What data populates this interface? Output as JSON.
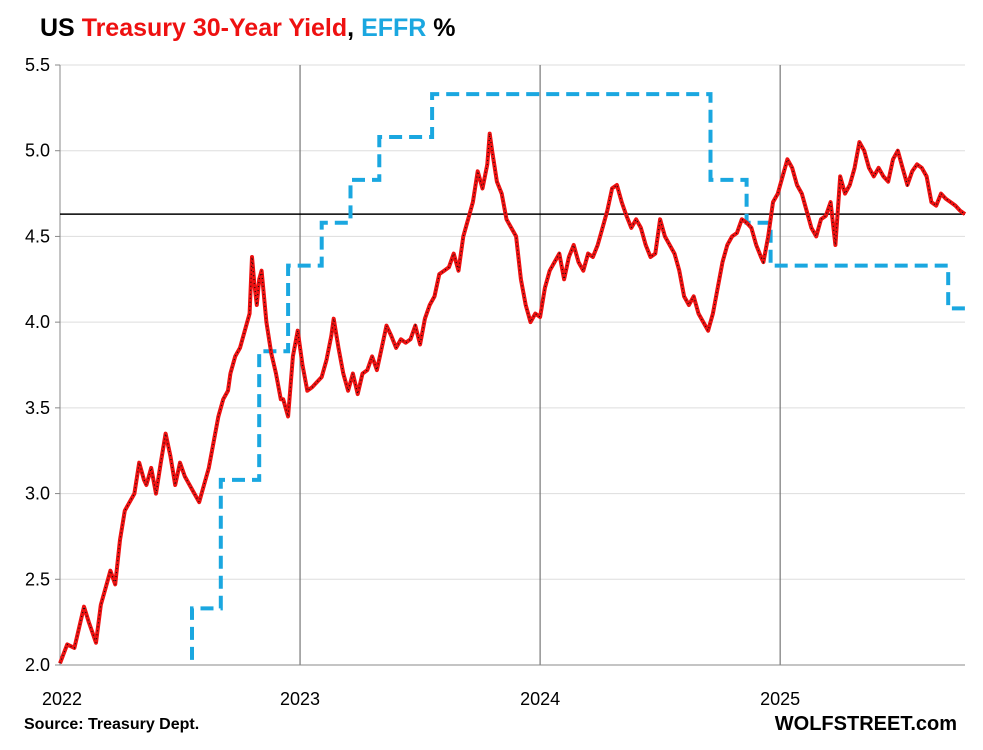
{
  "title": {
    "part1": "US ",
    "part2": "Treasury 30-Year Yield",
    "part3": ", ",
    "part4": "EFFR",
    "part5": " %",
    "color_red": "#ee1111",
    "color_blue": "#1aa7e0"
  },
  "source": "Source: Treasury Dept.",
  "brand": "WOLFSTREET.com",
  "chart_data": {
    "type": "line",
    "title": "US Treasury 30-Year Yield, EFFR %",
    "xlabel": "",
    "ylabel": "%",
    "xlim": [
      2022.0,
      2025.77
    ],
    "ylim": [
      2.0,
      5.5
    ],
    "y_ticks": [
      "2.0",
      "2.5",
      "3.0",
      "3.5",
      "4.0",
      "4.5",
      "5.0",
      "5.5"
    ],
    "x_ticks": [
      {
        "label": "2022",
        "value": 2022.0
      },
      {
        "label": "2023",
        "value": 2023.0
      },
      {
        "label": "2024",
        "value": 2024.0
      },
      {
        "label": "2025",
        "value": 2025.0
      }
    ],
    "grid": true,
    "reference_line": 4.63,
    "series": [
      {
        "name": "US Treasury 30-Year Yield",
        "color": "#ee1111",
        "style": "solid",
        "points": [
          [
            2022.0,
            2.01
          ],
          [
            2022.03,
            2.12
          ],
          [
            2022.06,
            2.1
          ],
          [
            2022.08,
            2.22
          ],
          [
            2022.1,
            2.34
          ],
          [
            2022.12,
            2.25
          ],
          [
            2022.15,
            2.13
          ],
          [
            2022.17,
            2.35
          ],
          [
            2022.19,
            2.45
          ],
          [
            2022.21,
            2.55
          ],
          [
            2022.23,
            2.47
          ],
          [
            2022.25,
            2.73
          ],
          [
            2022.27,
            2.9
          ],
          [
            2022.29,
            2.95
          ],
          [
            2022.31,
            3.0
          ],
          [
            2022.33,
            3.18
          ],
          [
            2022.35,
            3.08
          ],
          [
            2022.36,
            3.05
          ],
          [
            2022.38,
            3.15
          ],
          [
            2022.4,
            3.0
          ],
          [
            2022.42,
            3.18
          ],
          [
            2022.44,
            3.35
          ],
          [
            2022.46,
            3.22
          ],
          [
            2022.48,
            3.05
          ],
          [
            2022.5,
            3.18
          ],
          [
            2022.52,
            3.1
          ],
          [
            2022.54,
            3.05
          ],
          [
            2022.56,
            3.0
          ],
          [
            2022.58,
            2.95
          ],
          [
            2022.6,
            3.05
          ],
          [
            2022.62,
            3.15
          ],
          [
            2022.64,
            3.3
          ],
          [
            2022.66,
            3.45
          ],
          [
            2022.68,
            3.55
          ],
          [
            2022.7,
            3.6
          ],
          [
            2022.71,
            3.7
          ],
          [
            2022.73,
            3.8
          ],
          [
            2022.75,
            3.85
          ],
          [
            2022.77,
            3.95
          ],
          [
            2022.79,
            4.05
          ],
          [
            2022.8,
            4.38
          ],
          [
            2022.81,
            4.22
          ],
          [
            2022.82,
            4.1
          ],
          [
            2022.83,
            4.25
          ],
          [
            2022.84,
            4.3
          ],
          [
            2022.86,
            4.0
          ],
          [
            2022.88,
            3.82
          ],
          [
            2022.9,
            3.7
          ],
          [
            2022.92,
            3.55
          ],
          [
            2022.93,
            3.55
          ],
          [
            2022.95,
            3.45
          ],
          [
            2022.97,
            3.8
          ],
          [
            2022.99,
            3.95
          ],
          [
            2023.01,
            3.75
          ],
          [
            2023.03,
            3.6
          ],
          [
            2023.05,
            3.62
          ],
          [
            2023.07,
            3.65
          ],
          [
            2023.09,
            3.68
          ],
          [
            2023.11,
            3.78
          ],
          [
            2023.13,
            3.92
          ],
          [
            2023.14,
            4.02
          ],
          [
            2023.16,
            3.85
          ],
          [
            2023.18,
            3.7
          ],
          [
            2023.2,
            3.6
          ],
          [
            2023.22,
            3.7
          ],
          [
            2023.24,
            3.58
          ],
          [
            2023.26,
            3.7
          ],
          [
            2023.28,
            3.72
          ],
          [
            2023.3,
            3.8
          ],
          [
            2023.32,
            3.72
          ],
          [
            2023.34,
            3.85
          ],
          [
            2023.36,
            3.98
          ],
          [
            2023.38,
            3.92
          ],
          [
            2023.4,
            3.85
          ],
          [
            2023.42,
            3.9
          ],
          [
            2023.44,
            3.88
          ],
          [
            2023.46,
            3.9
          ],
          [
            2023.48,
            3.98
          ],
          [
            2023.5,
            3.87
          ],
          [
            2023.52,
            4.02
          ],
          [
            2023.54,
            4.1
          ],
          [
            2023.56,
            4.15
          ],
          [
            2023.58,
            4.28
          ],
          [
            2023.6,
            4.3
          ],
          [
            2023.62,
            4.32
          ],
          [
            2023.64,
            4.4
          ],
          [
            2023.66,
            4.3
          ],
          [
            2023.68,
            4.5
          ],
          [
            2023.7,
            4.6
          ],
          [
            2023.72,
            4.7
          ],
          [
            2023.74,
            4.88
          ],
          [
            2023.76,
            4.78
          ],
          [
            2023.78,
            4.92
          ],
          [
            2023.79,
            5.1
          ],
          [
            2023.8,
            5.0
          ],
          [
            2023.82,
            4.82
          ],
          [
            2023.84,
            4.75
          ],
          [
            2023.86,
            4.6
          ],
          [
            2023.88,
            4.55
          ],
          [
            2023.9,
            4.5
          ],
          [
            2023.92,
            4.25
          ],
          [
            2023.94,
            4.1
          ],
          [
            2023.96,
            4.0
          ],
          [
            2023.98,
            4.05
          ],
          [
            2024.0,
            4.03
          ],
          [
            2024.02,
            4.2
          ],
          [
            2024.04,
            4.3
          ],
          [
            2024.06,
            4.35
          ],
          [
            2024.08,
            4.4
          ],
          [
            2024.1,
            4.25
          ],
          [
            2024.12,
            4.38
          ],
          [
            2024.14,
            4.45
          ],
          [
            2024.16,
            4.35
          ],
          [
            2024.18,
            4.3
          ],
          [
            2024.2,
            4.4
          ],
          [
            2024.22,
            4.38
          ],
          [
            2024.24,
            4.45
          ],
          [
            2024.26,
            4.55
          ],
          [
            2024.28,
            4.65
          ],
          [
            2024.3,
            4.78
          ],
          [
            2024.32,
            4.8
          ],
          [
            2024.34,
            4.7
          ],
          [
            2024.36,
            4.62
          ],
          [
            2024.38,
            4.55
          ],
          [
            2024.4,
            4.6
          ],
          [
            2024.42,
            4.55
          ],
          [
            2024.44,
            4.45
          ],
          [
            2024.46,
            4.38
          ],
          [
            2024.48,
            4.4
          ],
          [
            2024.5,
            4.6
          ],
          [
            2024.52,
            4.5
          ],
          [
            2024.54,
            4.45
          ],
          [
            2024.56,
            4.4
          ],
          [
            2024.58,
            4.3
          ],
          [
            2024.6,
            4.15
          ],
          [
            2024.62,
            4.1
          ],
          [
            2024.64,
            4.15
          ],
          [
            2024.66,
            4.05
          ],
          [
            2024.68,
            4.0
          ],
          [
            2024.7,
            3.95
          ],
          [
            2024.72,
            4.05
          ],
          [
            2024.74,
            4.2
          ],
          [
            2024.76,
            4.35
          ],
          [
            2024.78,
            4.45
          ],
          [
            2024.8,
            4.5
          ],
          [
            2024.82,
            4.52
          ],
          [
            2024.84,
            4.6
          ],
          [
            2024.86,
            4.58
          ],
          [
            2024.88,
            4.55
          ],
          [
            2024.9,
            4.45
          ],
          [
            2024.92,
            4.38
          ],
          [
            2024.93,
            4.35
          ],
          [
            2024.95,
            4.5
          ],
          [
            2024.97,
            4.7
          ],
          [
            2024.99,
            4.75
          ],
          [
            2025.01,
            4.85
          ],
          [
            2025.03,
            4.95
          ],
          [
            2025.05,
            4.9
          ],
          [
            2025.07,
            4.8
          ],
          [
            2025.09,
            4.75
          ],
          [
            2025.11,
            4.65
          ],
          [
            2025.13,
            4.55
          ],
          [
            2025.15,
            4.5
          ],
          [
            2025.17,
            4.6
          ],
          [
            2025.19,
            4.62
          ],
          [
            2025.21,
            4.7
          ],
          [
            2025.23,
            4.45
          ],
          [
            2025.25,
            4.85
          ],
          [
            2025.27,
            4.75
          ],
          [
            2025.29,
            4.8
          ],
          [
            2025.31,
            4.9
          ],
          [
            2025.33,
            5.05
          ],
          [
            2025.35,
            5.0
          ],
          [
            2025.37,
            4.9
          ],
          [
            2025.39,
            4.85
          ],
          [
            2025.41,
            4.9
          ],
          [
            2025.43,
            4.85
          ],
          [
            2025.45,
            4.82
          ],
          [
            2025.47,
            4.95
          ],
          [
            2025.49,
            5.0
          ],
          [
            2025.51,
            4.9
          ],
          [
            2025.53,
            4.8
          ],
          [
            2025.55,
            4.88
          ],
          [
            2025.57,
            4.92
          ],
          [
            2025.59,
            4.9
          ],
          [
            2025.61,
            4.85
          ],
          [
            2025.63,
            4.7
          ],
          [
            2025.65,
            4.68
          ],
          [
            2025.67,
            4.75
          ],
          [
            2025.69,
            4.72
          ],
          [
            2025.71,
            4.7
          ],
          [
            2025.73,
            4.68
          ],
          [
            2025.75,
            4.65
          ],
          [
            2025.77,
            4.63
          ]
        ]
      },
      {
        "name": "EFFR",
        "color": "#1aa7e0",
        "style": "dashed",
        "points": [
          [
            2022.55,
            2.03
          ],
          [
            2022.55,
            2.33
          ],
          [
            2022.67,
            2.33
          ],
          [
            2022.67,
            3.08
          ],
          [
            2022.83,
            3.08
          ],
          [
            2022.83,
            3.83
          ],
          [
            2022.95,
            3.83
          ],
          [
            2022.95,
            4.33
          ],
          [
            2023.09,
            4.33
          ],
          [
            2023.09,
            4.58
          ],
          [
            2023.21,
            4.58
          ],
          [
            2023.21,
            4.83
          ],
          [
            2023.33,
            4.83
          ],
          [
            2023.33,
            5.08
          ],
          [
            2023.55,
            5.08
          ],
          [
            2023.55,
            5.33
          ],
          [
            2024.71,
            5.33
          ],
          [
            2024.71,
            4.83
          ],
          [
            2024.86,
            4.83
          ],
          [
            2024.86,
            4.58
          ],
          [
            2024.96,
            4.58
          ],
          [
            2024.96,
            4.33
          ],
          [
            2025.7,
            4.33
          ],
          [
            2025.7,
            4.08
          ],
          [
            2025.77,
            4.08
          ]
        ]
      }
    ]
  }
}
